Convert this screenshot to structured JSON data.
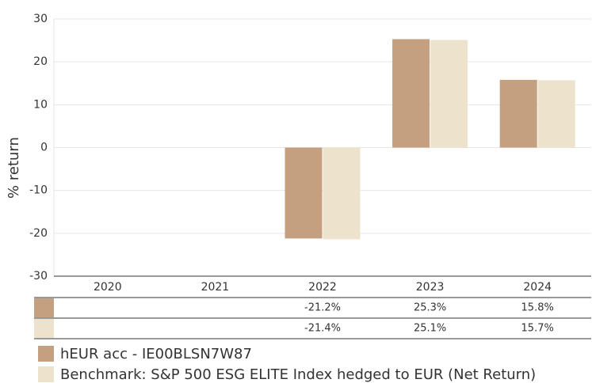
{
  "chart_data": {
    "type": "bar",
    "y_label": "% return",
    "categories": [
      "2020",
      "2021",
      "2022",
      "2023",
      "2024"
    ],
    "series": [
      {
        "name": "hEUR acc - IE00BLSN7W87",
        "color": "#c4a080",
        "values": [
          null,
          null,
          -21.2,
          25.3,
          15.8
        ],
        "value_labels": [
          null,
          null,
          "-21.2%",
          "25.3%",
          "15.8%"
        ]
      },
      {
        "name": "Benchmark: S&P 500 ESG ELITE Index hedged to EUR (Net Return)",
        "color": "#ede2cb",
        "values": [
          null,
          null,
          -21.4,
          25.1,
          15.7
        ],
        "value_labels": [
          null,
          null,
          "-21.4%",
          "25.1%",
          "15.7%"
        ]
      }
    ],
    "ylim": [
      -30,
      30
    ],
    "yticks": [
      30,
      20,
      10,
      0,
      -10,
      -20,
      -30
    ],
    "grid": true
  }
}
